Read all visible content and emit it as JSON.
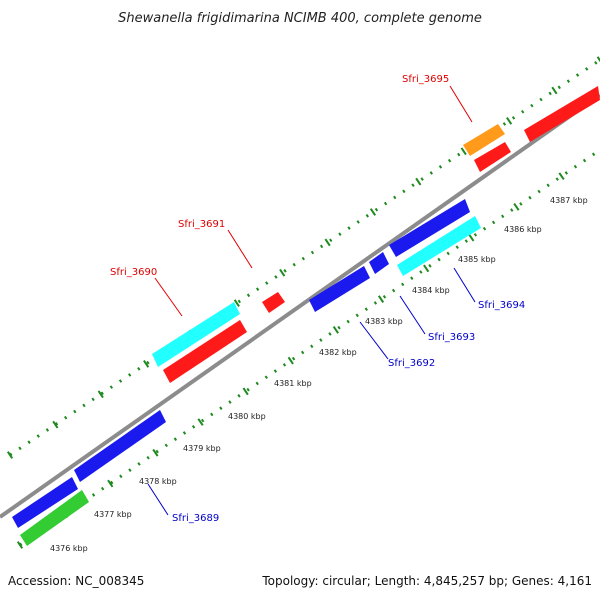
{
  "title": "Shewanella frigidimarina NCIMB 400, complete genome",
  "footer": {
    "accession": "Accession: NC_008345",
    "topology": "Topology: circular; Length: 4,845,257 bp; Genes: 4,161"
  },
  "colors": {
    "backbone": "#8c8c8c",
    "ticks": "#1f8a1f",
    "red": "#ff1a1a",
    "blue": "#1a1aee",
    "cyan": "#22ffff",
    "orange": "#ff9a1a",
    "green": "#33cc33",
    "label_red": "#e00000",
    "label_blue": "#0000cc"
  },
  "tick_labels": [
    "4376 kbp",
    "4377 kbp",
    "4378 kbp",
    "4379 kbp",
    "4380 kbp",
    "4381 kbp",
    "4382 kbp",
    "4383 kbp",
    "4384 kbp",
    "4385 kbp",
    "4386 kbp",
    "4387 kbp"
  ],
  "gene_labels": [
    {
      "text": "Sfri_3695",
      "color": "red"
    },
    {
      "text": "Sfri_3691",
      "color": "red"
    },
    {
      "text": "Sfri_3690",
      "color": "red"
    },
    {
      "text": "Sfri_3694",
      "color": "blue"
    },
    {
      "text": "Sfri_3693",
      "color": "blue"
    },
    {
      "text": "Sfri_3692",
      "color": "blue"
    },
    {
      "text": "Sfri_3689",
      "color": "blue"
    }
  ]
}
